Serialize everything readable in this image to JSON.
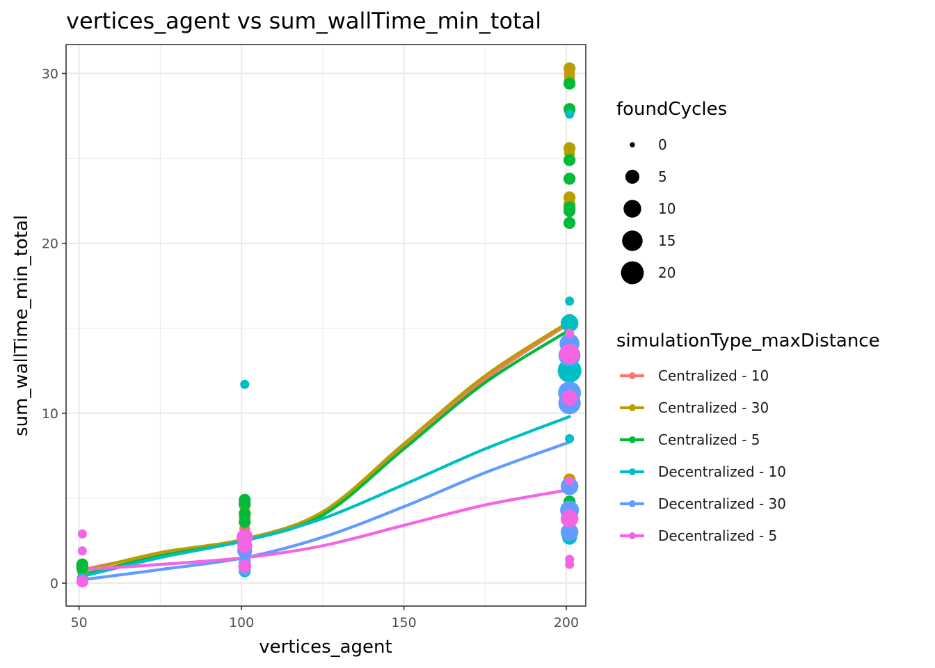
{
  "chart_data": {
    "type": "scatter",
    "title": "vertices_agent  vs  sum_wallTime_min_total",
    "xlabel": "vertices_agent",
    "ylabel": "sum_wallTime_min_total",
    "xlim": [
      46,
      206
    ],
    "ylim": [
      -1.35,
      31.7
    ],
    "x_ticks": [
      50,
      100,
      150,
      200
    ],
    "x_tick_labels": [
      "50",
      "100",
      "150",
      "200"
    ],
    "y_ticks": [
      0,
      10,
      20,
      30
    ],
    "y_tick_labels": [
      "0",
      "10",
      "20",
      "30"
    ],
    "grid": true,
    "legend_placement": "right",
    "size_legend": {
      "title": "foundCycles",
      "values": [
        0,
        5,
        10,
        15,
        20
      ],
      "labels": [
        "0",
        "5",
        "10",
        "15",
        "20"
      ]
    },
    "color_legend": {
      "title": "simulationType_maxDistance"
    },
    "series": [
      {
        "name": "Centralized - 10",
        "color": "#F8766D",
        "points": [
          [
            51,
            0.8,
            2
          ],
          [
            51,
            0.6,
            1
          ],
          [
            101,
            2.5,
            3
          ],
          [
            101,
            3.2,
            2
          ],
          [
            101,
            4.5,
            2
          ],
          [
            201,
            30.0,
            2
          ],
          [
            201,
            29.6,
            2
          ],
          [
            201,
            25.5,
            2
          ],
          [
            201,
            22.4,
            2
          ],
          [
            201,
            21.8,
            1
          ],
          [
            201,
            15.5,
            3
          ],
          [
            201,
            5.9,
            2
          ],
          [
            201,
            4.6,
            1
          ]
        ],
        "smooth": [
          [
            51,
            0.8
          ],
          [
            75,
            1.7
          ],
          [
            101,
            2.5
          ],
          [
            125,
            4.1
          ],
          [
            150,
            8.0
          ],
          [
            175,
            12.0
          ],
          [
            201,
            15.3
          ]
        ]
      },
      {
        "name": "Centralized - 30",
        "color": "#B79F00",
        "points": [
          [
            51,
            1.0,
            3
          ],
          [
            51,
            0.7,
            2
          ],
          [
            101,
            2.6,
            4
          ],
          [
            101,
            3.9,
            3
          ],
          [
            101,
            4.6,
            3
          ],
          [
            201,
            30.3,
            3
          ],
          [
            201,
            29.8,
            2
          ],
          [
            201,
            25.6,
            3
          ],
          [
            201,
            25.3,
            2
          ],
          [
            201,
            22.7,
            3
          ],
          [
            201,
            22.3,
            3
          ],
          [
            201,
            6.1,
            3
          ],
          [
            201,
            5.8,
            2
          ]
        ],
        "smooth": [
          [
            51,
            0.7
          ],
          [
            75,
            1.8
          ],
          [
            101,
            2.6
          ],
          [
            125,
            4.2
          ],
          [
            150,
            8.2
          ],
          [
            175,
            12.2
          ],
          [
            201,
            15.4
          ]
        ]
      },
      {
        "name": "Centralized - 5",
        "color": "#00BA38",
        "points": [
          [
            51,
            1.1,
            3
          ],
          [
            51,
            0.9,
            3
          ],
          [
            101,
            4.9,
            3
          ],
          [
            101,
            4.7,
            3
          ],
          [
            101,
            4.1,
            3
          ],
          [
            101,
            3.6,
            3
          ],
          [
            101,
            2.9,
            2
          ],
          [
            201,
            29.4,
            3
          ],
          [
            201,
            27.9,
            3
          ],
          [
            201,
            27.8,
            2
          ],
          [
            201,
            24.9,
            3
          ],
          [
            201,
            23.8,
            3
          ],
          [
            201,
            22.1,
            3
          ],
          [
            201,
            21.9,
            3
          ],
          [
            201,
            21.2,
            3
          ],
          [
            201,
            4.8,
            3
          ],
          [
            201,
            4.2,
            3
          ]
        ],
        "smooth": [
          [
            51,
            0.5
          ],
          [
            75,
            1.6
          ],
          [
            101,
            2.5
          ],
          [
            125,
            4.0
          ],
          [
            150,
            7.9
          ],
          [
            175,
            11.8
          ],
          [
            201,
            14.9
          ]
        ]
      },
      {
        "name": "Decentralized - 10",
        "color": "#00BFC4",
        "points": [
          [
            51,
            0.3,
            2
          ],
          [
            101,
            11.7,
            1
          ],
          [
            101,
            2.3,
            4
          ],
          [
            101,
            1.1,
            3
          ],
          [
            101,
            0.7,
            3
          ],
          [
            201,
            27.6,
            1
          ],
          [
            201,
            16.6,
            1
          ],
          [
            201,
            15.3,
            10
          ],
          [
            201,
            12.5,
            22
          ],
          [
            201,
            8.5,
            1
          ],
          [
            201,
            3.7,
            6
          ],
          [
            201,
            2.7,
            6
          ]
        ],
        "smooth": [
          [
            51,
            0.4
          ],
          [
            75,
            1.5
          ],
          [
            101,
            2.5
          ],
          [
            125,
            3.8
          ],
          [
            150,
            5.8
          ],
          [
            175,
            7.9
          ],
          [
            201,
            9.8
          ]
        ]
      },
      {
        "name": "Decentralized - 30",
        "color": "#619CFF",
        "points": [
          [
            51,
            0.2,
            2
          ],
          [
            101,
            1.9,
            6
          ],
          [
            101,
            1.3,
            3
          ],
          [
            101,
            0.8,
            3
          ],
          [
            201,
            14.1,
            14
          ],
          [
            201,
            13.4,
            18
          ],
          [
            201,
            11.2,
            20
          ],
          [
            201,
            10.6,
            19
          ],
          [
            201,
            5.7,
            10
          ],
          [
            201,
            4.3,
            12
          ],
          [
            201,
            3.0,
            10
          ]
        ],
        "smooth": [
          [
            51,
            0.2
          ],
          [
            75,
            0.8
          ],
          [
            101,
            1.5
          ],
          [
            125,
            2.7
          ],
          [
            150,
            4.5
          ],
          [
            175,
            6.5
          ],
          [
            201,
            8.3
          ]
        ]
      },
      {
        "name": "Decentralized - 5",
        "color": "#F564E3",
        "points": [
          [
            51,
            2.9,
            1
          ],
          [
            51,
            1.9,
            1
          ],
          [
            51,
            0.1,
            3
          ],
          [
            101,
            2.7,
            8
          ],
          [
            101,
            2.2,
            6
          ],
          [
            101,
            1.0,
            4
          ],
          [
            201,
            14.7,
            1
          ],
          [
            201,
            13.5,
            14
          ],
          [
            201,
            10.9,
            7
          ],
          [
            201,
            6.0,
            1
          ],
          [
            201,
            3.8,
            10
          ],
          [
            201,
            1.4,
            1
          ],
          [
            201,
            1.1,
            1
          ]
        ],
        "smooth": [
          [
            51,
            0.8
          ],
          [
            75,
            1.1
          ],
          [
            101,
            1.5
          ],
          [
            125,
            2.2
          ],
          [
            150,
            3.4
          ],
          [
            175,
            4.6
          ],
          [
            201,
            5.5
          ]
        ]
      }
    ]
  }
}
